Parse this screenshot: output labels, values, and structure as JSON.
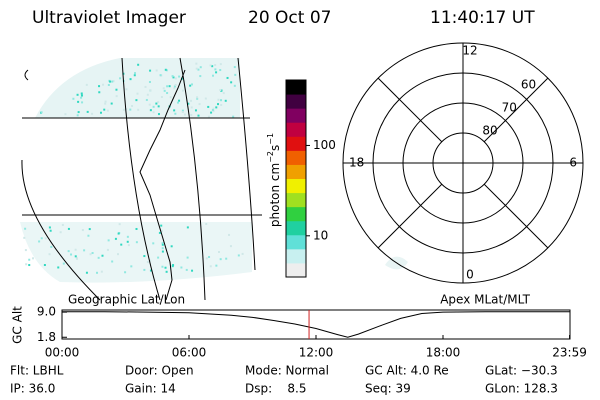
{
  "header": {
    "title": "Ultraviolet Imager",
    "date": "20 Oct 07",
    "time": "11:40:17 UT"
  },
  "geo_label": "Geographic Lat/Lon",
  "apex_label": "Apex MLat/MLT",
  "colorbar": {
    "label_parts": [
      "photon cm",
      "−2",
      "s",
      "−1"
    ],
    "log": true,
    "range": [
      3.5,
      530
    ],
    "ticks": [
      10,
      100
    ],
    "colors": [
      "#eeeeee",
      "#c8f0f0",
      "#60e0d8",
      "#20d0a0",
      "#30d040",
      "#a0e020",
      "#f0f000",
      "#f0a000",
      "#f06000",
      "#e01010",
      "#c00040",
      "#800060",
      "#400040",
      "#000000"
    ]
  },
  "polar": {
    "mlat_lim": [
      50,
      90
    ],
    "rings": [
      50,
      60,
      70,
      80
    ],
    "ring_labels": [
      60,
      70,
      80
    ],
    "mlt_labels": [
      12,
      18,
      6,
      0
    ]
  },
  "alt_strip": {
    "ylabel": "GC Alt",
    "xlim": [
      0,
      24
    ],
    "ylim": [
      1.3,
      9.6
    ],
    "yticks": [
      {
        "value": 9,
        "label": "9.0"
      },
      1.8
    ],
    "xticks": [
      {
        "value": 0,
        "label": "00:00"
      },
      {
        "value": 6,
        "label": "06:00"
      },
      {
        "value": 12,
        "label": "12:00"
      },
      {
        "value": 18,
        "label": "18:00"
      },
      {
        "value": 23.98,
        "label": "23:59"
      }
    ],
    "x": [
      0,
      2,
      4,
      6,
      8,
      9,
      10,
      11,
      12,
      13,
      13.5,
      14,
      15,
      16,
      17,
      18,
      20,
      22,
      24
    ],
    "values": [
      9.1,
      9.1,
      9.0,
      8.8,
      8.1,
      7.5,
      6.6,
      5.6,
      4.3,
      2.6,
      1.8,
      2.7,
      5.0,
      7.2,
      8.6,
      9.0,
      9.1,
      9.1,
      9.1
    ]
  },
  "footer": {
    "rows": [
      [
        "Flt: LBHL",
        "Door: Open",
        "Mode: Normal",
        "GC Alt: 4.0 Re",
        "GLat: −30.3"
      ],
      [
        "IP: 36.0",
        "Gain: 14",
        "Dsp:    8.5",
        "Seq: 39",
        "GLon: 128.3"
      ]
    ]
  }
}
